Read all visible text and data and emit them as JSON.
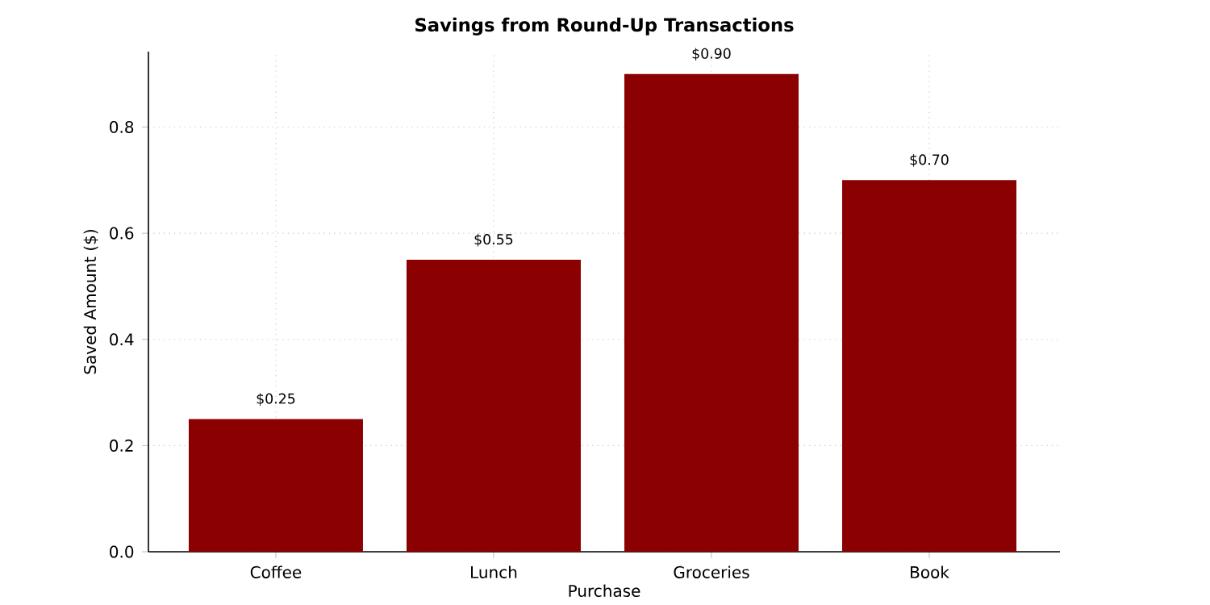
{
  "chart_data": {
    "type": "bar",
    "title": "Savings from Round-Up Transactions",
    "xlabel": "Purchase",
    "ylabel": "Saved Amount ($)",
    "categories": [
      "Coffee",
      "Lunch",
      "Groceries",
      "Book"
    ],
    "values": [
      0.25,
      0.55,
      0.9,
      0.7
    ],
    "value_labels": [
      "$0.25",
      "$0.55",
      "$0.90",
      "$0.70"
    ],
    "color": "#8b0000",
    "ylim": [
      0,
      0.942
    ],
    "yticks": [
      {
        "value": 0,
        "label": "0.0"
      },
      0.2,
      0.4,
      0.6,
      0.8
    ],
    "grid": true
  }
}
